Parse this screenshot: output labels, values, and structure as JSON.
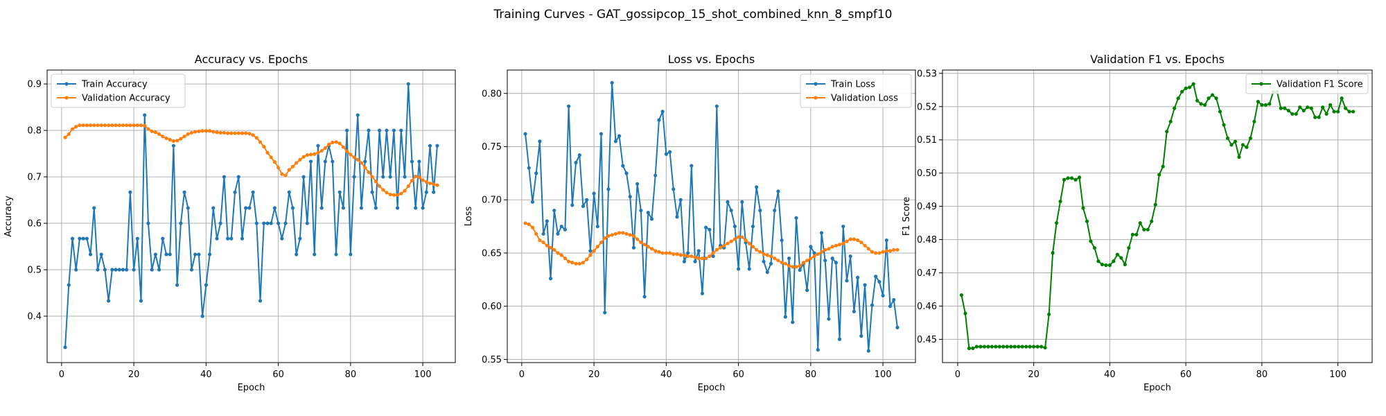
{
  "figure": {
    "suptitle": "Training Curves - GAT_gossipcop_15_shot_combined_knn_8_smpf10"
  },
  "colors": {
    "blue": "#1f77b4",
    "orange": "#ff7f0e",
    "green": "#008000",
    "grid": "#b0b0b0"
  },
  "chart_data": [
    {
      "type": "line",
      "title": "Accuracy vs. Epochs",
      "xlabel": "Epoch",
      "ylabel": "Accuracy",
      "xlim": [
        -4,
        109
      ],
      "ylim": [
        0.3,
        0.93
      ],
      "xticks": [
        0,
        20,
        40,
        60,
        80,
        100
      ],
      "yticks": [
        0.4,
        0.5,
        0.6,
        0.7,
        0.8,
        0.9
      ],
      "grid": true,
      "legend": "upper left",
      "series": [
        {
          "name": "Train Accuracy",
          "color": "#1f77b4",
          "values": [
            0.333,
            0.467,
            0.567,
            0.5,
            0.567,
            0.567,
            0.567,
            0.533,
            0.633,
            0.5,
            0.533,
            0.5,
            0.433,
            0.5,
            0.5,
            0.5,
            0.5,
            0.5,
            0.667,
            0.5,
            0.567,
            0.433,
            0.833,
            0.6,
            0.5,
            0.533,
            0.5,
            0.567,
            0.533,
            0.533,
            0.767,
            0.467,
            0.6,
            0.667,
            0.633,
            0.5,
            0.533,
            0.533,
            0.4,
            0.467,
            0.533,
            0.633,
            0.567,
            0.6,
            0.7,
            0.567,
            0.567,
            0.667,
            0.7,
            0.567,
            0.633,
            0.633,
            0.667,
            0.6,
            0.433,
            0.6,
            0.6,
            0.6,
            0.633,
            0.6,
            0.567,
            0.6,
            0.667,
            0.633,
            0.533,
            0.567,
            0.7,
            0.6,
            0.733,
            0.533,
            0.767,
            0.633,
            0.733,
            0.767,
            0.733,
            0.533,
            0.667,
            0.633,
            0.8,
            0.533,
            0.7,
            0.833,
            0.633,
            0.733,
            0.8,
            0.667,
            0.633,
            0.8,
            0.7,
            0.8,
            0.7,
            0.8,
            0.633,
            0.8,
            0.7,
            0.9,
            0.733,
            0.633,
            0.733,
            0.633,
            0.667,
            0.767,
            0.667,
            0.767
          ]
        },
        {
          "name": "Validation Accuracy",
          "color": "#ff7f0e",
          "values": [
            0.785,
            0.792,
            0.803,
            0.808,
            0.811,
            0.811,
            0.811,
            0.811,
            0.811,
            0.811,
            0.811,
            0.811,
            0.811,
            0.811,
            0.811,
            0.811,
            0.811,
            0.811,
            0.811,
            0.811,
            0.811,
            0.811,
            0.81,
            0.803,
            0.798,
            0.796,
            0.792,
            0.787,
            0.783,
            0.78,
            0.777,
            0.778,
            0.782,
            0.787,
            0.792,
            0.795,
            0.797,
            0.798,
            0.799,
            0.799,
            0.799,
            0.797,
            0.796,
            0.795,
            0.795,
            0.794,
            0.794,
            0.794,
            0.794,
            0.794,
            0.794,
            0.793,
            0.79,
            0.784,
            0.775,
            0.765,
            0.752,
            0.742,
            0.732,
            0.72,
            0.706,
            0.703,
            0.715,
            0.722,
            0.73,
            0.737,
            0.743,
            0.747,
            0.748,
            0.749,
            0.752,
            0.756,
            0.762,
            0.77,
            0.774,
            0.775,
            0.772,
            0.764,
            0.755,
            0.748,
            0.742,
            0.737,
            0.73,
            0.72,
            0.71,
            0.7,
            0.69,
            0.68,
            0.672,
            0.666,
            0.662,
            0.661,
            0.661,
            0.664,
            0.67,
            0.68,
            0.692,
            0.701,
            0.699,
            0.693,
            0.689,
            0.686,
            0.684,
            0.682
          ]
        }
      ]
    },
    {
      "type": "line",
      "title": "Loss vs. Epochs",
      "xlabel": "Epoch",
      "ylabel": "Loss",
      "xlim": [
        -4,
        109
      ],
      "ylim": [
        0.547,
        0.822
      ],
      "xticks": [
        0,
        20,
        40,
        60,
        80,
        100
      ],
      "yticks": [
        0.55,
        0.6,
        0.65,
        0.7,
        0.75,
        0.8
      ],
      "grid": true,
      "legend": "upper right",
      "series": [
        {
          "name": "Train Loss",
          "color": "#1f77b4",
          "values": [
            0.762,
            0.73,
            0.698,
            0.725,
            0.755,
            0.668,
            0.68,
            0.626,
            0.69,
            0.668,
            0.675,
            0.672,
            0.788,
            0.695,
            0.735,
            0.742,
            0.694,
            0.7,
            0.652,
            0.706,
            0.675,
            0.762,
            0.594,
            0.71,
            0.81,
            0.755,
            0.76,
            0.732,
            0.725,
            0.703,
            0.655,
            0.715,
            0.69,
            0.609,
            0.688,
            0.682,
            0.723,
            0.775,
            0.783,
            0.743,
            0.745,
            0.71,
            0.684,
            0.7,
            0.642,
            0.65,
            0.732,
            0.642,
            0.652,
            0.612,
            0.674,
            0.672,
            0.647,
            0.788,
            0.657,
            0.655,
            0.698,
            0.69,
            0.675,
            0.635,
            0.698,
            0.66,
            0.635,
            0.675,
            0.712,
            0.69,
            0.642,
            0.632,
            0.64,
            0.69,
            0.708,
            0.662,
            0.59,
            0.645,
            0.585,
            0.683,
            0.634,
            0.64,
            0.615,
            0.656,
            0.65,
            0.559,
            0.669,
            0.643,
            0.588,
            0.645,
            0.641,
            0.569,
            0.675,
            0.624,
            0.647,
            0.595,
            0.627,
            0.572,
            0.62,
            0.558,
            0.601,
            0.628,
            0.623,
            0.61,
            0.662,
            0.6,
            0.606,
            0.58
          ]
        },
        {
          "name": "Validation Loss",
          "color": "#ff7f0e",
          "values": [
            0.678,
            0.677,
            0.674,
            0.668,
            0.662,
            0.66,
            0.657,
            0.655,
            0.653,
            0.65,
            0.648,
            0.645,
            0.642,
            0.641,
            0.64,
            0.64,
            0.641,
            0.644,
            0.648,
            0.652,
            0.656,
            0.66,
            0.664,
            0.666,
            0.667,
            0.668,
            0.669,
            0.669,
            0.668,
            0.667,
            0.666,
            0.663,
            0.66,
            0.658,
            0.656,
            0.654,
            0.652,
            0.651,
            0.65,
            0.65,
            0.65,
            0.649,
            0.649,
            0.648,
            0.648,
            0.647,
            0.647,
            0.646,
            0.645,
            0.645,
            0.645,
            0.647,
            0.65,
            0.653,
            0.655,
            0.657,
            0.659,
            0.661,
            0.663,
            0.665,
            0.665,
            0.662,
            0.659,
            0.656,
            0.653,
            0.651,
            0.649,
            0.648,
            0.647,
            0.645,
            0.643,
            0.641,
            0.64,
            0.638,
            0.637,
            0.637,
            0.638,
            0.641,
            0.643,
            0.645,
            0.647,
            0.649,
            0.651,
            0.653,
            0.654,
            0.656,
            0.657,
            0.658,
            0.659,
            0.661,
            0.663,
            0.663,
            0.662,
            0.66,
            0.657,
            0.654,
            0.651,
            0.65,
            0.65,
            0.651,
            0.652,
            0.652,
            0.653,
            0.653
          ]
        }
      ]
    },
    {
      "type": "line",
      "title": "Validation F1 vs. Epochs",
      "xlabel": "Epoch",
      "ylabel": "F1 Score",
      "xlim": [
        -4,
        109
      ],
      "ylim": [
        0.443,
        0.531
      ],
      "xticks": [
        0,
        20,
        40,
        60,
        80,
        100
      ],
      "yticks": [
        0.45,
        0.46,
        0.47,
        0.48,
        0.49,
        0.5,
        0.51,
        0.52,
        0.53
      ],
      "grid": true,
      "legend": "upper right",
      "series": [
        {
          "name": "Validation F1 Score",
          "color": "#008000",
          "values": [
            0.4633,
            0.4578,
            0.4473,
            0.4473,
            0.4478,
            0.4478,
            0.4478,
            0.4478,
            0.4478,
            0.4478,
            0.4478,
            0.4478,
            0.4478,
            0.4478,
            0.4478,
            0.4478,
            0.4478,
            0.4478,
            0.4478,
            0.4478,
            0.4478,
            0.4478,
            0.4475,
            0.4575,
            0.476,
            0.485,
            0.4915,
            0.498,
            0.4985,
            0.4985,
            0.498,
            0.4987,
            0.4895,
            0.4855,
            0.4795,
            0.4775,
            0.4735,
            0.4725,
            0.4723,
            0.4723,
            0.4735,
            0.4755,
            0.4745,
            0.4725,
            0.4775,
            0.4815,
            0.4815,
            0.485,
            0.483,
            0.483,
            0.4855,
            0.4905,
            0.4995,
            0.502,
            0.5125,
            0.5155,
            0.5195,
            0.5225,
            0.5245,
            0.5255,
            0.5258,
            0.5268,
            0.5218,
            0.5208,
            0.5205,
            0.5225,
            0.5235,
            0.5225,
            0.5185,
            0.5145,
            0.5105,
            0.5085,
            0.5095,
            0.5048,
            0.5085,
            0.5078,
            0.5105,
            0.5155,
            0.5215,
            0.5205,
            0.5205,
            0.5208,
            0.5245,
            0.5245,
            0.5195,
            0.5195,
            0.5188,
            0.5178,
            0.5178,
            0.5198,
            0.5188,
            0.5198,
            0.5195,
            0.5168,
            0.5168,
            0.5198,
            0.5178,
            0.5205,
            0.5185,
            0.5185,
            0.5225,
            0.5195,
            0.5185,
            0.5185
          ]
        }
      ]
    }
  ]
}
